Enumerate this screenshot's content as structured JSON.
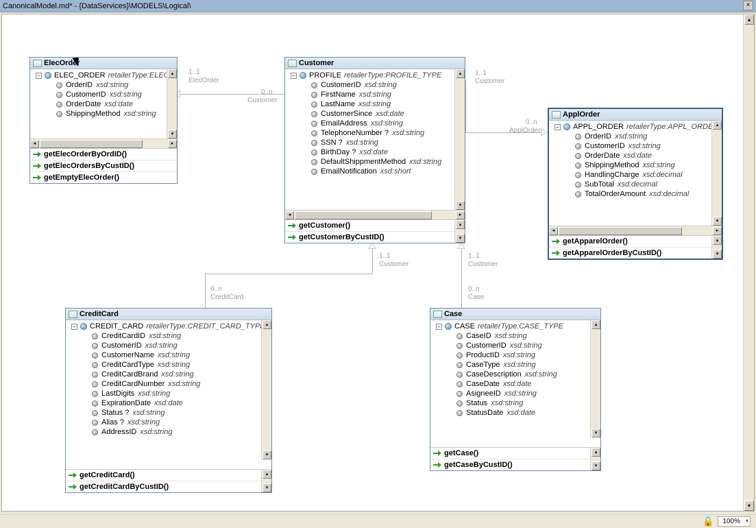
{
  "window": {
    "title": "CanonicalModel.md* - {DataServices}\\MODELS\\Logical\\",
    "zoom": "100%"
  },
  "entities": {
    "elecOrder": {
      "title": "ElecOrder",
      "typeName": "ELEC_ORDER",
      "typeType": "retailerType:ELEC_",
      "fields": [
        {
          "name": "OrderID",
          "type": "xsd:string"
        },
        {
          "name": "CustomerID",
          "type": "xsd:string"
        },
        {
          "name": "OrderDate",
          "type": "xsd:date"
        },
        {
          "name": "ShippingMethod",
          "type": "xsd:string"
        }
      ],
      "methods": [
        "getElecOrderByOrdID()",
        "getElecOrdersByCustID()",
        "getEmptyElecOrder()"
      ]
    },
    "customer": {
      "title": "Customer",
      "typeName": "PROFILE",
      "typeType": "retailerType:PROFILE_TYPE",
      "fields": [
        {
          "name": "CustomerID",
          "type": "xsd:string"
        },
        {
          "name": "FirstName",
          "type": "xsd:string"
        },
        {
          "name": "LastName",
          "type": "xsd:string"
        },
        {
          "name": "CustomerSince",
          "type": "xsd:date"
        },
        {
          "name": "EmailAddress",
          "type": "xsd:string"
        },
        {
          "name": "TelephoneNumber ?",
          "type": "xsd:string"
        },
        {
          "name": "SSN ?",
          "type": "xsd:string"
        },
        {
          "name": "BirthDay ?",
          "type": "xsd:date"
        },
        {
          "name": "DefaultShippmentMethod",
          "type": "xsd:string"
        },
        {
          "name": "EmailNotification",
          "type": "xsd:short"
        }
      ],
      "methods": [
        "getCustomer()",
        "getCustomerByCustID()"
      ]
    },
    "applOrder": {
      "title": "ApplOrder",
      "typeName": "APPL_ORDER",
      "typeType": "retailerType:APPL_ORDE",
      "fields": [
        {
          "name": "OrderID",
          "type": "xsd:string"
        },
        {
          "name": "CustomerID",
          "type": "xsd:string"
        },
        {
          "name": "OrderDate",
          "type": "xsd:date"
        },
        {
          "name": "ShippingMethod",
          "type": "xsd:string"
        },
        {
          "name": "HandlingCharge",
          "type": "xsd:decimal"
        },
        {
          "name": "SubTotal",
          "type": "xsd:decimal"
        },
        {
          "name": "TotalOrderAmount",
          "type": "xsd:decimal"
        }
      ],
      "methods": [
        "getApparelOrder()",
        "getApparelOrderByCustID()"
      ]
    },
    "creditCard": {
      "title": "CreditCard",
      "typeName": "CREDIT_CARD",
      "typeType": "retailerType:CREDIT_CARD_TYPE",
      "fields": [
        {
          "name": "CreditCardID",
          "type": "xsd:string"
        },
        {
          "name": "CustomerID",
          "type": "xsd:string"
        },
        {
          "name": "CustomerName",
          "type": "xsd:string"
        },
        {
          "name": "CreditCardType",
          "type": "xsd:string"
        },
        {
          "name": "CreditCardBrand",
          "type": "xsd:string"
        },
        {
          "name": "CreditCardNumber",
          "type": "xsd:string"
        },
        {
          "name": "LastDigits",
          "type": "xsd:string"
        },
        {
          "name": "ExpirationDate",
          "type": "xsd:date"
        },
        {
          "name": "Status ?",
          "type": "xsd:string"
        },
        {
          "name": "Alias ?",
          "type": "xsd:string"
        },
        {
          "name": "AddressID",
          "type": "xsd:string"
        }
      ],
      "methods": [
        "getCreditCard()",
        "getCreditCardByCustID()"
      ]
    },
    "case": {
      "title": "Case",
      "typeName": "CASE",
      "typeType": "retailerType:CASE_TYPE",
      "fields": [
        {
          "name": "CaseID",
          "type": "xsd:string"
        },
        {
          "name": "CustomerID",
          "type": "xsd:string"
        },
        {
          "name": "ProductID",
          "type": "xsd:string"
        },
        {
          "name": "CaseType",
          "type": "xsd:string"
        },
        {
          "name": "CaseDescription",
          "type": "xsd:string"
        },
        {
          "name": "CaseDate",
          "type": "xsd:date"
        },
        {
          "name": "AsigneeID",
          "type": "xsd:string"
        },
        {
          "name": "Status",
          "type": "xsd:string"
        },
        {
          "name": "StatusDate",
          "type": "xsd:date"
        }
      ],
      "methods": [
        "getCase()",
        "getCaseByCustID()"
      ]
    }
  },
  "labels": {
    "elecOrder_one": "1..1",
    "elecOrder_role": "ElecOrder",
    "customer_many": "0..n",
    "customer_role": "Customer",
    "applOrder_one": "1..1",
    "applOrder_role": "Customer",
    "applOrder_many": "0..n",
    "applOrder_role2": "ApplOrder",
    "credit_one": "1..1",
    "credit_role": "Customer",
    "credit_many": "0..n",
    "credit_role2": "CreditCard",
    "case_one": "1..1",
    "case_role": "Customer",
    "case_many": "0..n",
    "case_role2": "Case"
  }
}
